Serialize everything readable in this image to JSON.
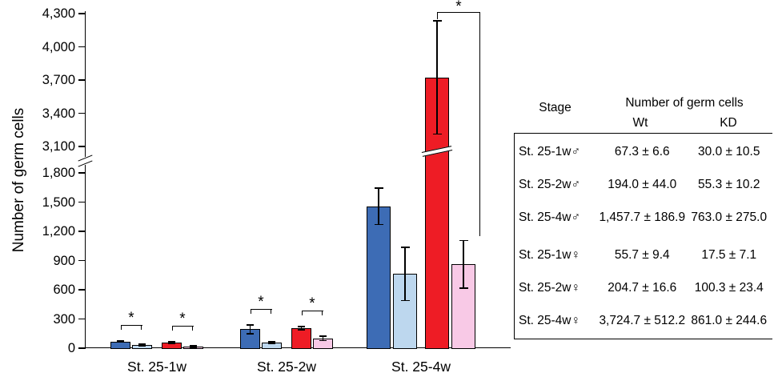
{
  "chart_data": {
    "type": "bar",
    "title": "",
    "ylabel": "Number of germ cells",
    "categories": [
      "St. 25-1w",
      "St. 25-2w",
      "St. 25-4w"
    ],
    "series": [
      {
        "key": "wt-male",
        "name": "Wt ♂",
        "color": "#3d6cb5",
        "values": [
          67.3,
          194.0,
          1457.7
        ],
        "errors": [
          6.6,
          44.0,
          186.9
        ]
      },
      {
        "key": "kd-male",
        "name": "KD ♂",
        "color": "#bdd7ee",
        "values": [
          30.0,
          55.3,
          763.0
        ],
        "errors": [
          10.5,
          10.2,
          275.0
        ]
      },
      {
        "key": "wt-female",
        "name": "Wt ♀",
        "color": "#ee1c25",
        "values": [
          55.7,
          204.7,
          3724.7
        ],
        "errors": [
          9.4,
          16.6,
          512.2
        ]
      },
      {
        "key": "kd-female",
        "name": "KD ♀",
        "color": "#f8c9e6",
        "values": [
          17.5,
          100.3,
          861.0
        ],
        "errors": [
          7.1,
          23.4,
          244.6
        ]
      }
    ],
    "yaxis": {
      "lower_ticks": [
        [
          0,
          "0"
        ],
        [
          300,
          "300"
        ],
        [
          600,
          "600"
        ],
        [
          900,
          "900"
        ],
        [
          1200,
          "1,200"
        ],
        [
          1500,
          "1,500"
        ],
        [
          1800,
          "1,800"
        ]
      ],
      "upper_ticks": [
        [
          3100,
          "3,100"
        ],
        [
          3400,
          "3,400"
        ],
        [
          3700,
          "3,700"
        ],
        [
          4000,
          "4,000"
        ],
        [
          4300,
          "4,300"
        ]
      ],
      "break_between": [
        1800,
        3100
      ]
    },
    "significance": [
      {
        "label": "*",
        "category": 0,
        "pair": [
          0,
          1
        ]
      },
      {
        "label": "*",
        "category": 0,
        "pair": [
          2,
          3
        ]
      },
      {
        "label": "*",
        "category": 1,
        "pair": [
          0,
          1
        ]
      },
      {
        "label": "*",
        "category": 1,
        "pair": [
          2,
          3
        ]
      },
      {
        "label": "*",
        "category": 2,
        "pair": [
          2,
          3
        ],
        "style": "tall"
      }
    ]
  },
  "table": {
    "header": {
      "stage": "Stage",
      "group": "Number of germ cells",
      "col1": "Wt",
      "col2": "KD"
    },
    "rows": [
      {
        "stage": "St. 25-1w♂",
        "wt": "67.3 ± 6.6",
        "kd": "30.0 ± 10.5"
      },
      {
        "stage": "St. 25-2w♂",
        "wt": "194.0 ± 44.0",
        "kd": "55.3 ± 10.2"
      },
      {
        "stage": "St. 25-4w♂",
        "wt": "1,457.7 ± 186.9",
        "kd": "763.0 ± 275.0"
      },
      {
        "stage": "St. 25-1w♀",
        "wt": "55.7 ± 9.4",
        "kd": "17.5 ± 7.1"
      },
      {
        "stage": "St. 25-2w♀",
        "wt": "204.7 ± 16.6",
        "kd": "100.3 ± 23.4"
      },
      {
        "stage": "St. 25-4w♀",
        "wt": "3,724.7 ± 512.2",
        "kd": "861.0 ± 244.6"
      }
    ]
  }
}
